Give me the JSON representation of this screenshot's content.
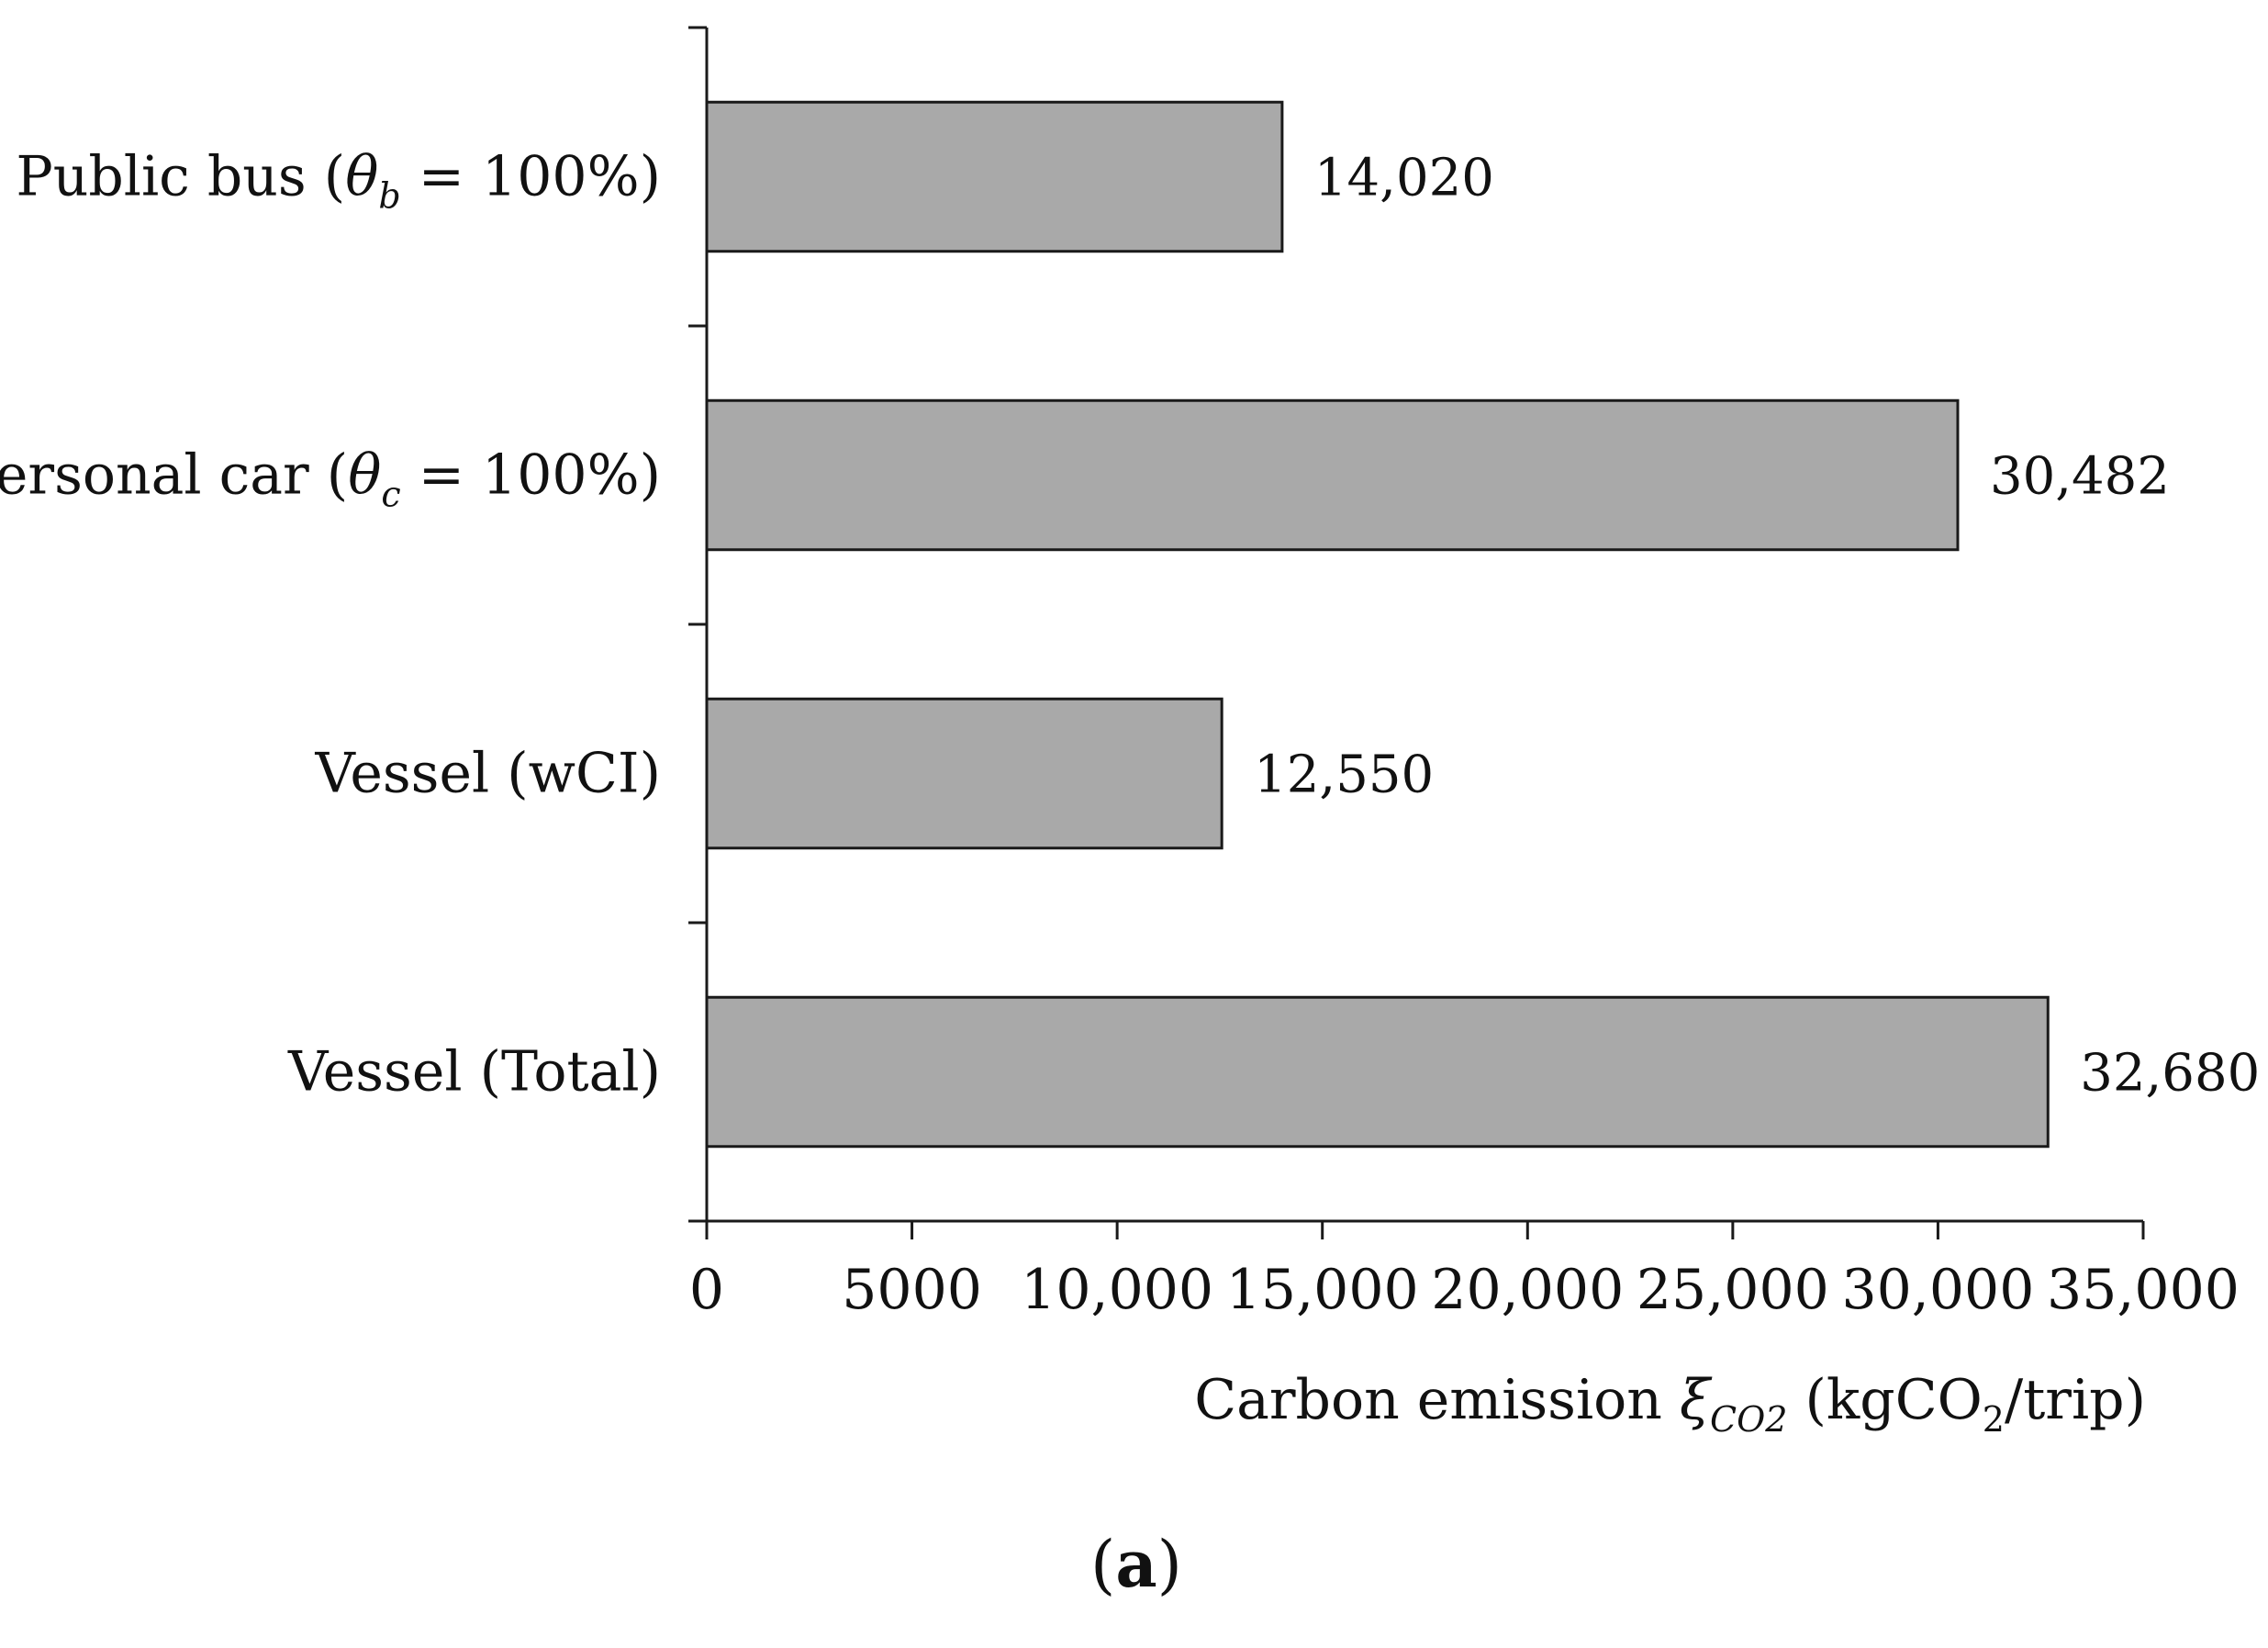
{
  "chart_data": {
    "type": "bar",
    "orientation": "horizontal",
    "categories": [
      {
        "prefix": "Public bus (",
        "symbol": "θ",
        "sub": "b",
        "suffix": " = 100%)"
      },
      {
        "prefix": "Personal car (",
        "symbol": "θ",
        "sub": "c",
        "suffix": " = 100%)"
      },
      {
        "prefix": "Vessel (wCI)",
        "symbol": "",
        "sub": "",
        "suffix": ""
      },
      {
        "prefix": "Vessel (Total)",
        "symbol": "",
        "sub": "",
        "suffix": ""
      }
    ],
    "values": [
      14020,
      30482,
      12550,
      32680
    ],
    "value_labels": [
      "14,020",
      "30,482",
      "12,550",
      "32,680"
    ],
    "xlim": [
      0,
      35000
    ],
    "xticks": [
      0,
      5000,
      10000,
      15000,
      20000,
      25000,
      30000,
      35000
    ],
    "xtick_labels": [
      "0",
      "5000",
      "10,000",
      "15,000",
      "20,000",
      "25,000",
      "30,000",
      "35,000"
    ],
    "xlabel": {
      "prefix": "Carbon emission ",
      "symbol": "ξ",
      "symbol_sub": "CO2",
      "unit_open": " (kgCO",
      "unit_sub": "2",
      "unit_close": "/trip)"
    },
    "grid": false,
    "legend": "none",
    "bar_color": "#a9a9a9",
    "bar_edge_color": "#1a1a1a"
  },
  "panel_label": {
    "open": "(",
    "letter": "a",
    "close": ")"
  }
}
